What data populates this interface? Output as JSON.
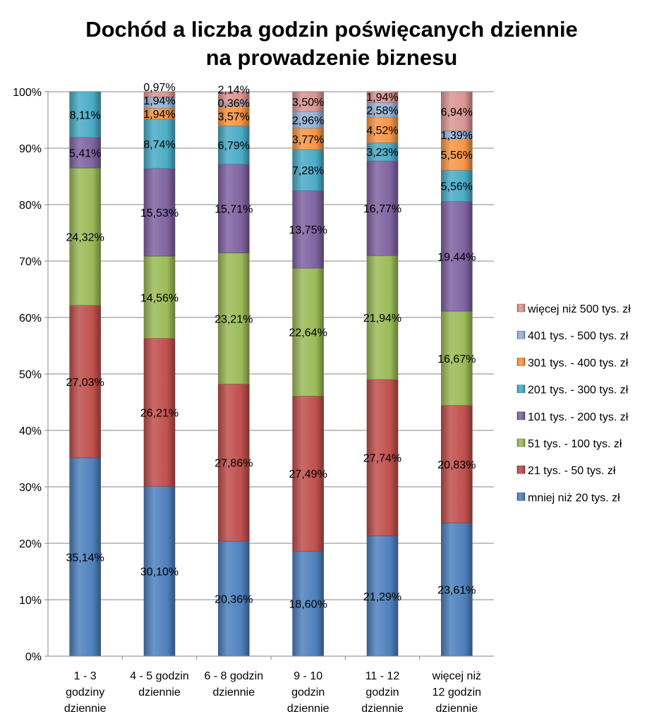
{
  "chart_data": {
    "type": "bar",
    "stacked": "percent",
    "title_lines": [
      "Dochód a liczba godzin poświęcanych dziennie",
      "na prowadzenie biznesu"
    ],
    "categories": [
      [
        "1 - 3",
        "godziny",
        "dziennie"
      ],
      [
        "4 - 5 godzin",
        "dziennie"
      ],
      [
        "6 - 8 godzin",
        "dziennie"
      ],
      [
        "9 - 10",
        "godzin",
        "dziennie"
      ],
      [
        "11 - 12",
        "godzin",
        "dziennie"
      ],
      [
        "więcej niż",
        "12 godzin",
        "dziennie"
      ]
    ],
    "ylim": [
      0,
      100
    ],
    "yticks": [
      "0%",
      "10%",
      "20%",
      "30%",
      "40%",
      "50%",
      "60%",
      "70%",
      "80%",
      "90%",
      "100%"
    ],
    "grid": true,
    "legend_position": "right",
    "series": [
      {
        "name": "mniej niż 20 tys. zł",
        "color": "#4f81bd",
        "values": [
          35.14,
          30.1,
          20.36,
          18.6,
          21.29,
          23.61
        ],
        "labels": [
          "35,14%",
          "30,10%",
          "20,36%",
          "18,60%",
          "21,29%",
          "23,61%"
        ]
      },
      {
        "name": "21 tys. - 50 tys. zł",
        "color": "#c0504d",
        "values": [
          27.03,
          26.21,
          27.86,
          27.49,
          27.74,
          20.83
        ],
        "labels": [
          "27,03%",
          "26,21%",
          "27,86%",
          "27,49%",
          "27,74%",
          "20,83%"
        ]
      },
      {
        "name": "51 tys. - 100 tys. zł",
        "color": "#9bbb59",
        "values": [
          24.32,
          14.56,
          23.21,
          22.64,
          21.94,
          16.67
        ],
        "labels": [
          "24,32%",
          "14,56%",
          "23,21%",
          "22,64%",
          "21,94%",
          "16,67%"
        ]
      },
      {
        "name": "101 tys. - 200 tys. zł",
        "color": "#8064a2",
        "values": [
          5.41,
          15.53,
          15.71,
          13.75,
          16.77,
          19.44
        ],
        "labels": [
          "5,41%",
          "15,53%",
          "15,71%",
          "13,75%",
          "16,77%",
          "19,44%"
        ]
      },
      {
        "name": "201 tys. - 300 tys. zł",
        "color": "#4bacc6",
        "values": [
          8.11,
          8.74,
          6.79,
          7.28,
          3.23,
          5.56
        ],
        "labels": [
          "8,11%",
          "8,74%",
          "6,79%",
          "7,28%",
          "3,23%",
          "5,56%"
        ]
      },
      {
        "name": "301 tys. - 400 tys. zł",
        "color": "#f79646",
        "values": [
          0,
          1.94,
          3.57,
          3.77,
          4.52,
          5.56
        ],
        "labels": [
          "",
          "1,94%",
          "3,57%",
          "3,77%",
          "4,52%",
          "5,56%"
        ]
      },
      {
        "name": "401 tys. - 500 tys. zł",
        "color": "#95b3d7",
        "values": [
          0,
          1.94,
          0.36,
          2.96,
          2.58,
          1.39
        ],
        "labels": [
          "",
          "1,94%",
          "0,36%",
          "2,96%",
          "2,58%",
          "1,39%"
        ]
      },
      {
        "name": "więcej niż 500 tys. zł",
        "color": "#d99694",
        "values": [
          0,
          0.97,
          2.14,
          3.5,
          1.94,
          6.94
        ],
        "labels": [
          "",
          "0,97%",
          "2,14%",
          "3,50%",
          "1,94%",
          "6,94%"
        ]
      }
    ]
  }
}
